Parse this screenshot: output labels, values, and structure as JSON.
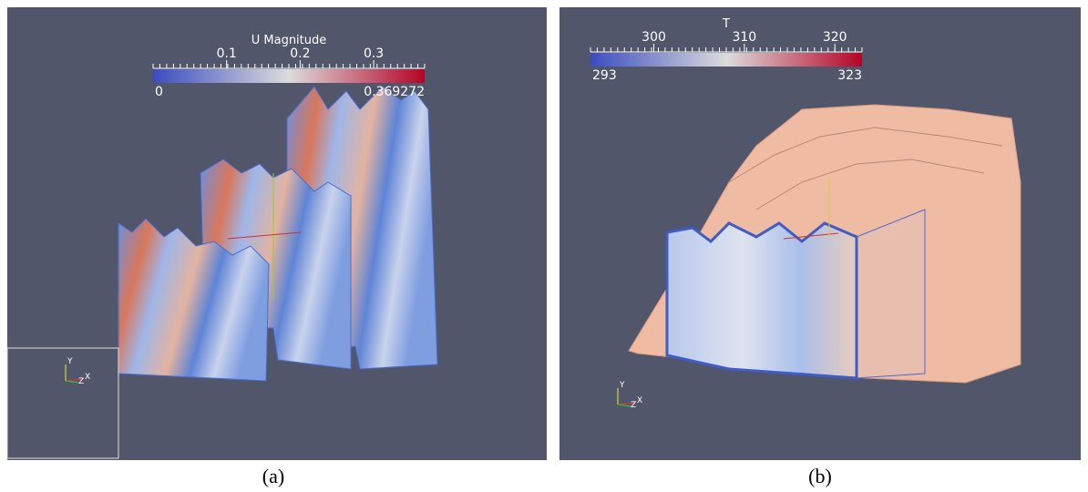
{
  "panels": [
    {
      "colorbar": {
        "title": "U Magnitude",
        "ticks": [
          0.1,
          0.2,
          0.3
        ],
        "min": 0,
        "max": 0.369272
      },
      "axes": {
        "y": "Y",
        "z": "Z",
        "x": "X"
      },
      "caption": "(a)"
    },
    {
      "colorbar": {
        "title": "T",
        "ticks": [
          300,
          310,
          320
        ],
        "min": 293,
        "max": 323
      },
      "axes": {
        "y": "Y",
        "z": "Z",
        "x": "X"
      },
      "caption": "(b)"
    }
  ]
}
